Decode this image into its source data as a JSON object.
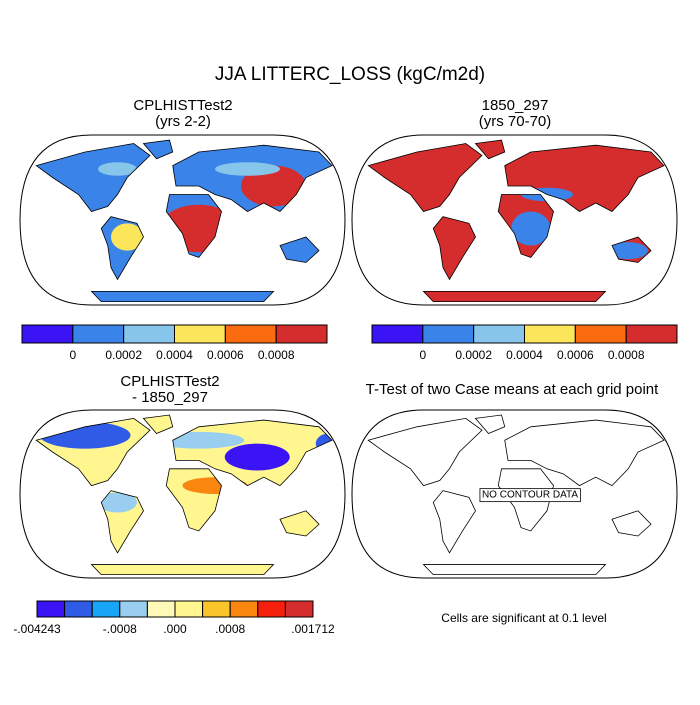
{
  "title": "JJA LITTERC_LOSS (kgC/m2d)",
  "panels": [
    {
      "title": "CPLHISTTest2",
      "subtitle": "(yrs 2-2)",
      "colorbar": {
        "colors": [
          "#3a14f5",
          "#3a83e8",
          "#88c5ea",
          "#fbe55b",
          "#fb6b10",
          "#d52d2d"
        ],
        "labels": [
          "0",
          "0.0002",
          "0.0004",
          "0.0006",
          "0.0008"
        ]
      }
    },
    {
      "title": "1850_297",
      "subtitle": "(yrs 70-70)",
      "colorbar": {
        "colors": [
          "#3a14f5",
          "#3a83e8",
          "#88c5ea",
          "#fbe55b",
          "#fb6b10",
          "#d52d2d"
        ],
        "labels": [
          "0",
          "0.0002",
          "0.0004",
          "0.0006",
          "0.0008"
        ]
      }
    },
    {
      "title": "CPLHISTTest2",
      "subtitle": "- 1850_297",
      "colorbar": {
        "colors": [
          "#3a14f5",
          "#2f5be6",
          "#19a5f5",
          "#99cef0",
          "#fff9b8",
          "#fff68f",
          "#fac42b",
          "#f9860f",
          "#f51f0d",
          "#d52d2d"
        ],
        "labels": [
          "-.004243",
          "-.0008",
          ".000",
          ".0008",
          ".001712"
        ]
      }
    },
    {
      "title": "T-Test of two Case means at each grid point",
      "annotation": "NO CONTOUR DATA",
      "footnote": "Cells are significant at 0.1 level"
    }
  ]
}
